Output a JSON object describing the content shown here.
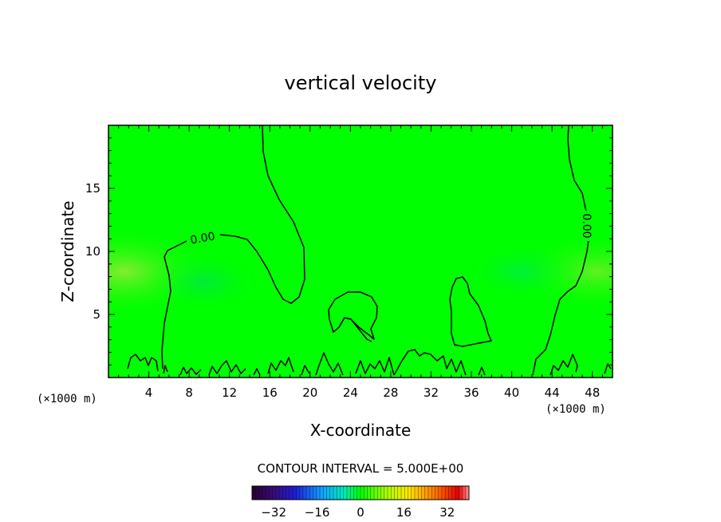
{
  "chart_data": {
    "type": "heatmap",
    "title": "vertical velocity",
    "xlabel": "X-coordinate",
    "ylabel": "Z-coordinate",
    "x_unit_label_left": "(×1000 m)",
    "x_unit_label_right": "(×1000 m)",
    "xlim": [
      0,
      50
    ],
    "ylim": [
      0,
      20
    ],
    "x_ticks": [
      4,
      8,
      12,
      16,
      20,
      24,
      28,
      32,
      36,
      40,
      44,
      48
    ],
    "y_ticks": [
      5,
      10,
      15
    ],
    "contour_interval_text": "CONTOUR INTERVAL = 5.000E+00",
    "contour_level": 0,
    "contour_labels": [
      "0.00",
      "0.00"
    ],
    "colorbar": {
      "min": -40,
      "max": 40,
      "tick_values": [
        -32,
        -16,
        0,
        16,
        32
      ],
      "tick_labels": [
        "−32",
        "−16",
        "0",
        "16",
        "32"
      ]
    },
    "colors": {
      "field_base": "#00ff00",
      "field_positive_tint": "#66ee22",
      "field_negative_tint": "#00e060"
    }
  }
}
